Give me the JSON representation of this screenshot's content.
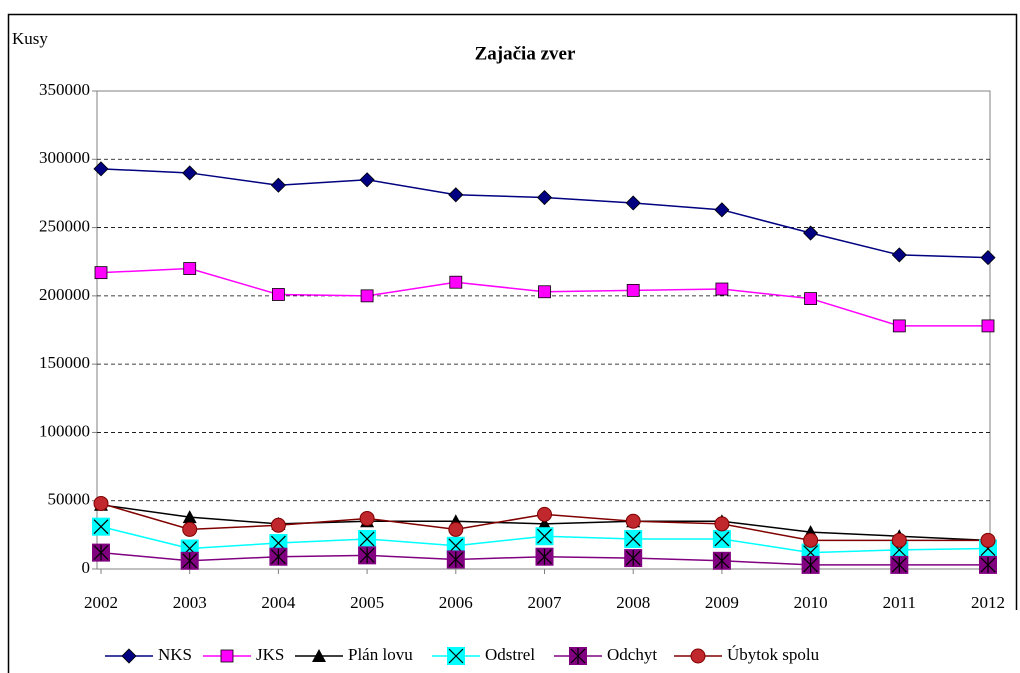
{
  "chart_data": {
    "type": "line",
    "title": "Zajačia zver",
    "y_label": "Kusy",
    "categories": [
      "2002",
      "2003",
      "2004",
      "2005",
      "2006",
      "2007",
      "2008",
      "2009",
      "2010",
      "2011",
      "2012"
    ],
    "ylim": [
      0,
      350000
    ],
    "yticks": [
      0,
      50000,
      100000,
      150000,
      200000,
      250000,
      300000,
      350000
    ],
    "grid": true,
    "legend": "bottom",
    "series": [
      {
        "name": "NKS",
        "color": "#000080",
        "marker": "diamond",
        "values": [
          293000,
          290000,
          281000,
          285000,
          274000,
          272000,
          268000,
          263000,
          246000,
          230000,
          228000
        ]
      },
      {
        "name": "JKS",
        "color": "#ff00ff",
        "marker": "square",
        "values": [
          217000,
          220000,
          201000,
          200000,
          210000,
          203000,
          204000,
          205000,
          198000,
          178000,
          178000
        ]
      },
      {
        "name": "Plán lovu",
        "color": "#000000",
        "marker": "triangle",
        "values": [
          47000,
          38000,
          33000,
          35000,
          35000,
          33000,
          35000,
          35000,
          27000,
          24000,
          21000
        ]
      },
      {
        "name": "Odstrel",
        "color": "#00ffff",
        "marker": "xsquare",
        "values": [
          31000,
          15000,
          19000,
          22000,
          17000,
          24000,
          22000,
          22000,
          12000,
          14000,
          15000
        ]
      },
      {
        "name": "Odchyt",
        "color": "#800080",
        "marker": "star",
        "values": [
          12000,
          6000,
          9000,
          10000,
          7000,
          9000,
          8000,
          6000,
          3000,
          3000,
          3000
        ]
      },
      {
        "name": "Úbytok spolu",
        "color": "#800000",
        "marker": "circle",
        "values": [
          48000,
          29000,
          32000,
          37000,
          29000,
          40000,
          35000,
          33000,
          21000,
          21000,
          21000
        ]
      }
    ]
  }
}
